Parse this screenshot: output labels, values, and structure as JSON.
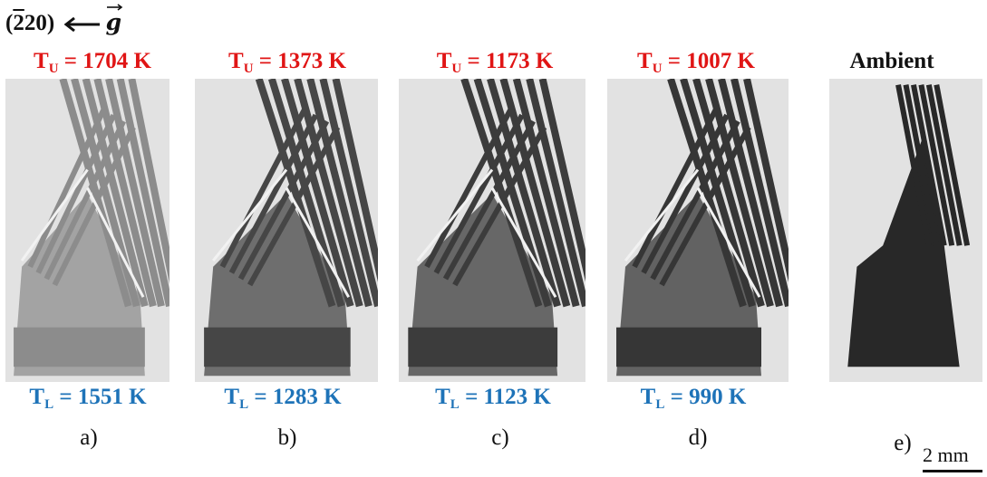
{
  "reflection": {
    "plane_digit_bar": "2",
    "plane_rest": "20",
    "vector_symbol": "g"
  },
  "panels": [
    {
      "id": "a",
      "letter": "a)",
      "upper": {
        "symbol": "T",
        "subscript": "U",
        "value": " = 1704 K"
      },
      "lower": {
        "symbol": "T",
        "subscript": "L",
        "value": " = 1551 K"
      },
      "darkness": 0.45
    },
    {
      "id": "b",
      "letter": "b)",
      "upper": {
        "symbol": "T",
        "subscript": "U",
        "value": " = 1373 K"
      },
      "lower": {
        "symbol": "T",
        "subscript": "L",
        "value": " = 1283 K"
      },
      "darkness": 0.8
    },
    {
      "id": "c",
      "letter": "c)",
      "upper": {
        "symbol": "T",
        "subscript": "U",
        "value": " = 1173 K"
      },
      "lower": {
        "symbol": "T",
        "subscript": "L",
        "value": " = 1123 K"
      },
      "darkness": 0.85
    },
    {
      "id": "d",
      "letter": "d)",
      "upper": {
        "symbol": "T",
        "subscript": "U",
        "value": " = 1007 K"
      },
      "lower": {
        "symbol": "T",
        "subscript": "L",
        "value": " = 990 K"
      },
      "darkness": 0.88
    },
    {
      "id": "e",
      "letter": "e)",
      "ambient_label": "Ambient",
      "darkness": 0.95
    }
  ],
  "scale_bar": {
    "label": "2 mm"
  },
  "colors": {
    "upper_temp": "#e01515",
    "lower_temp": "#1e73b8",
    "text": "#111111"
  }
}
